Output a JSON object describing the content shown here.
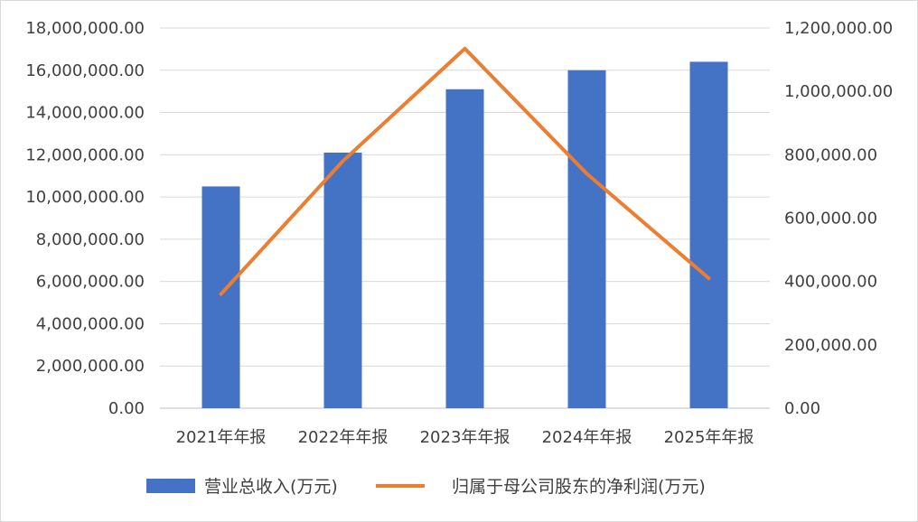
{
  "chart_data": {
    "type": "bar",
    "categories": [
      "2021年年报",
      "2022年年报",
      "2023年年报",
      "2024年年报",
      "2025年年报"
    ],
    "series": [
      {
        "name": "营业总收入(万元)",
        "type": "bar",
        "axis": "left",
        "color": "#4472C4",
        "values": [
          10500000,
          12100000,
          15100000,
          16000000,
          16400000
        ]
      },
      {
        "name": "归属于母公司股东的净利润(万元)",
        "type": "line",
        "axis": "right",
        "color": "#ED7D31",
        "values": [
          360000,
          780000,
          1135000,
          740000,
          410000
        ]
      }
    ],
    "y_left": {
      "ylim": [
        0,
        18000000
      ],
      "ticks": [
        0,
        2000000,
        4000000,
        6000000,
        8000000,
        10000000,
        12000000,
        14000000,
        16000000,
        18000000
      ],
      "tick_labels": [
        "0.00",
        "2,000,000.00",
        "4,000,000.00",
        "6,000,000.00",
        "8,000,000.00",
        "10,000,000.00",
        "12,000,000.00",
        "14,000,000.00",
        "16,000,000.00",
        "18,000,000.00"
      ]
    },
    "y_right": {
      "ylim": [
        0,
        1200000
      ],
      "ticks": [
        0,
        200000,
        400000,
        600000,
        800000,
        1000000,
        1200000
      ],
      "tick_labels": [
        "0.00",
        "200,000.00",
        "400,000.00",
        "600,000.00",
        "800,000.00",
        "1,000,000.00",
        "1,200,000.00"
      ]
    },
    "grid": true,
    "legend_position": "bottom",
    "gridline_color": "#D9D9D9"
  }
}
